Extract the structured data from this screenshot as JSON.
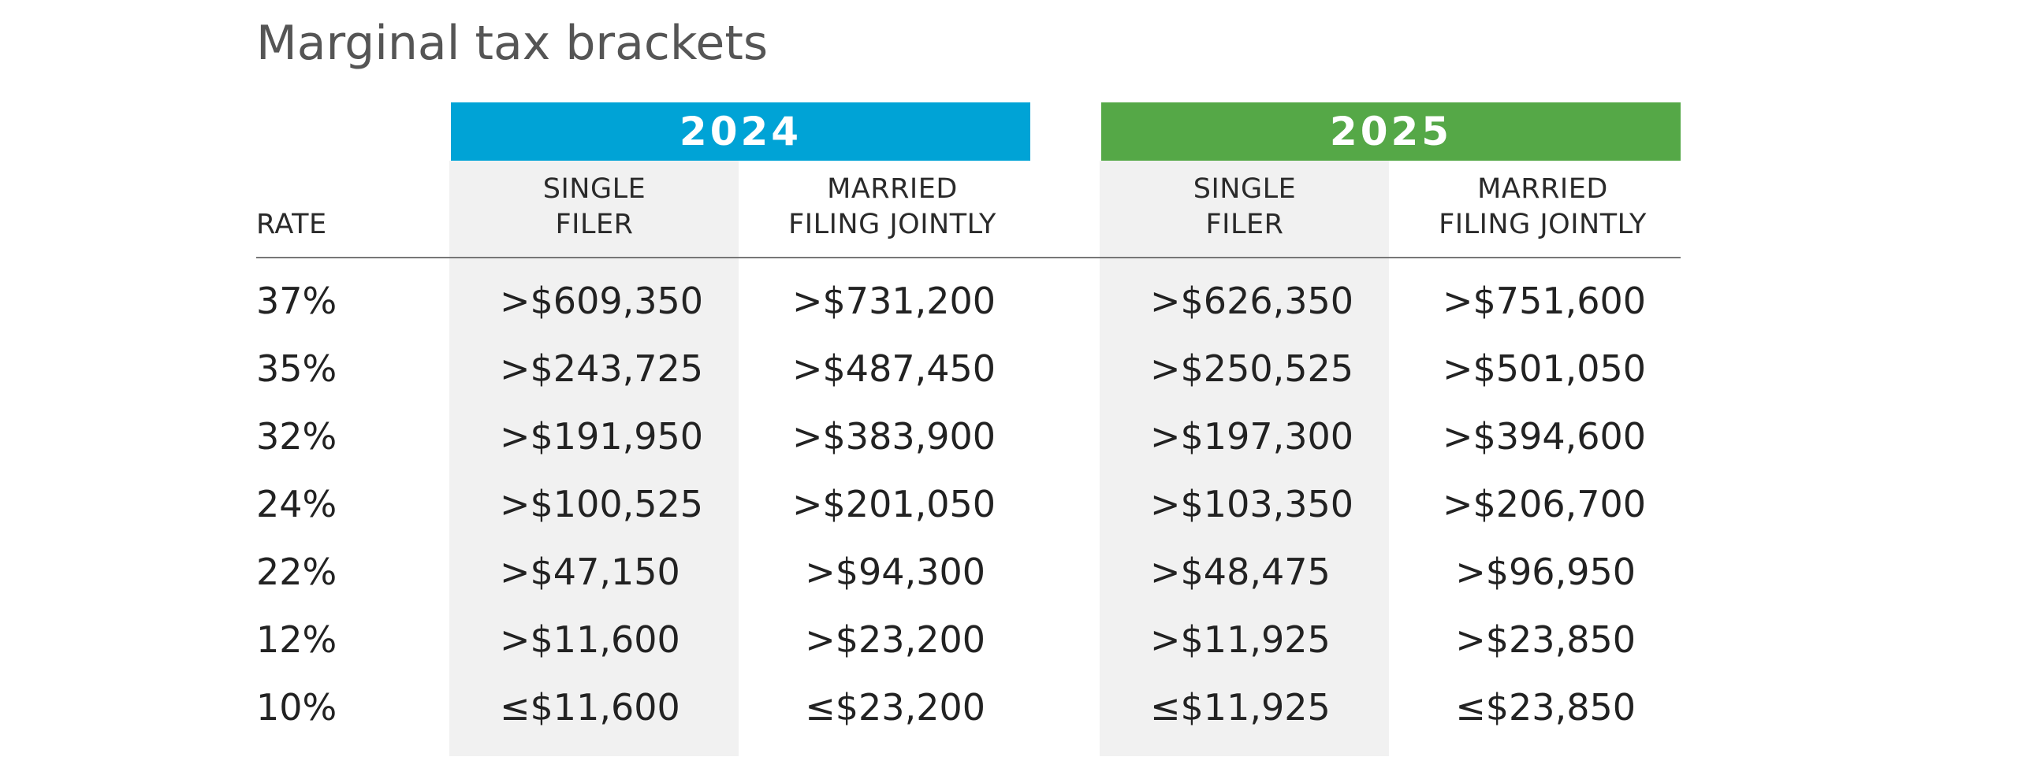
{
  "title": "Marginal tax brackets",
  "colors": {
    "year_2024": "#00a3d6",
    "year_2025": "#55a847",
    "shade": "#f1f1f1",
    "rule": "#777777"
  },
  "years": [
    "2024",
    "2025"
  ],
  "column_headers": {
    "rate": "RATE",
    "single": [
      "SINGLE",
      "FILER"
    ],
    "married": [
      "MARRIED",
      "FILING JOINTLY"
    ]
  },
  "chart_data": {
    "type": "table",
    "title": "Marginal tax brackets",
    "columns": [
      "RATE",
      "2024 SINGLE FILER",
      "2024 MARRIED FILING JOINTLY",
      "2025 SINGLE FILER",
      "2025 MARRIED FILING JOINTLY"
    ],
    "rows": [
      {
        "rate": "37%",
        "s2024": ">$609,350",
        "m2024": ">$731,200",
        "s2025": ">$626,350",
        "m2025": ">$751,600"
      },
      {
        "rate": "35%",
        "s2024": ">$243,725",
        "m2024": ">$487,450",
        "s2025": ">$250,525",
        "m2025": ">$501,050"
      },
      {
        "rate": "32%",
        "s2024": ">$191,950",
        "m2024": ">$383,900",
        "s2025": ">$197,300",
        "m2025": ">$394,600"
      },
      {
        "rate": "24%",
        "s2024": ">$100,525",
        "m2024": ">$201,050",
        "s2025": ">$103,350",
        "m2025": ">$206,700"
      },
      {
        "rate": "22%",
        "s2024": ">$47,150",
        "m2024": ">$94,300",
        "s2025": ">$48,475",
        "m2025": ">$96,950"
      },
      {
        "rate": "12%",
        "s2024": ">$11,600",
        "m2024": ">$23,200",
        "s2025": ">$11,925",
        "m2025": ">$23,850"
      },
      {
        "rate": "10%",
        "s2024": "≤$11,600",
        "m2024": "≤$23,200",
        "s2025": "≤$11,925",
        "m2025": "≤$23,850"
      }
    ]
  }
}
